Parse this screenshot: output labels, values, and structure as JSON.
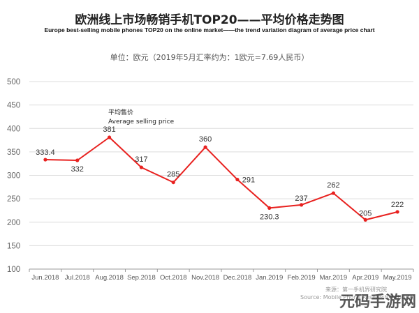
{
  "title": "欧洲线上市场畅销手机TOP20——平均价格走势图",
  "subtitle": "Europe best-selling mobile phones TOP20 on the online market——the trend variation diagram of average price chart",
  "unit_note": "单位：欧元（2019年5月汇率约为：1欧元=7.69人民币）",
  "colors": {
    "line": "#e8211f",
    "grid": "#dcdcdc",
    "axis": "#9a9a9a"
  },
  "chart_data": {
    "type": "line",
    "categories": [
      "Jun.2018",
      "Jul.2018",
      "Aug.2018",
      "Sep.2018",
      "Oct.2018",
      "Nov.2018",
      "Dec.2018",
      "Jan.2019",
      "Feb.2019",
      "Mar.2019",
      "Apr.2019",
      "May.2019"
    ],
    "series": [
      {
        "name": "",
        "values": [
          333.4,
          332,
          381,
          317,
          285,
          360,
          291,
          230.3,
          237,
          262,
          205,
          222
        ]
      }
    ],
    "data_labels": [
      "333.4",
      "332",
      "381",
      "317",
      "285",
      "360",
      "291",
      "230.3",
      "237",
      "262",
      "205",
      "222"
    ],
    "ylim": [
      100,
      500
    ],
    "yticks": [
      100,
      150,
      200,
      250,
      300,
      350,
      400,
      450,
      500
    ],
    "grid": true,
    "annotation": {
      "line1": "平均售价",
      "line2": "Average selling price"
    }
  },
  "source": {
    "line1": "来源：第一手机界研究院",
    "line2": "Source: Mobile Phone Research Institute"
  },
  "watermark": "元码手游网"
}
